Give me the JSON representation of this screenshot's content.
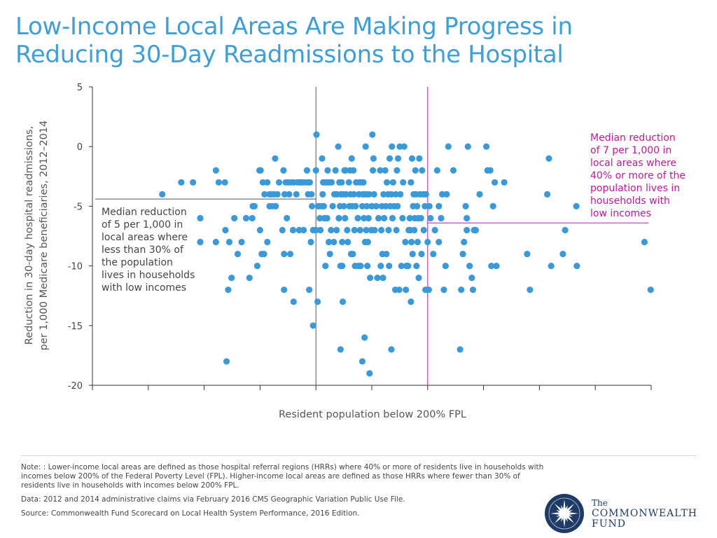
{
  "header": {
    "title_line1": "Low-Income Local Areas Are Making Progress in",
    "title_line2": "Reducing 30-Day Readmissions to the Hospital"
  },
  "footer": {
    "note": "Note: : Lower-income local areas are defined as those hospital referral regions (HRRs) where 40% or more of residents live in households with incomes below 200% of the Federal Poverty Level (FPL). Higher-income local areas are defined as those HRRs where fewer than 30% of residents live in households with incomes below 200% FPL.",
    "data_source": "Data: 2012 and 2014 administrative claims via February 2016 CMS Geographic Variation Public Use File.",
    "source": "Source: Commonwealth Fund Scorecard on Local Health System Performance, 2016 Edition.",
    "logo_the": "The",
    "logo_line1": "COMMONWEALTH",
    "logo_line2": "FUND"
  },
  "colors": {
    "title": "#3d9fd6",
    "points": "#3a9ad9",
    "low_income_line": "#c2169b",
    "high_income_line": "#555555",
    "logo": "#1e3a66"
  },
  "chart_data": {
    "type": "scatter",
    "xlabel": "Resident population below 200% FPL",
    "ylabel_line1": "Reduction in 30-day hospital readmissions,",
    "ylabel_line2": "per 1,000 Medicare beneficiaries, 2012–2014",
    "xlim": [
      0,
      1
    ],
    "ylim": [
      -20,
      5
    ],
    "yticks": [
      5,
      0,
      -5,
      -10,
      -15,
      -20
    ],
    "xticks": [
      0,
      0.1,
      0.2,
      0.3,
      0.4,
      0.5,
      0.6,
      0.7,
      0.8,
      0.9,
      1.0
    ],
    "xtick_labels_shown": false,
    "reference_lines": [
      {
        "name": "high-income-threshold",
        "x": 0.4,
        "median_y": -4.4,
        "median_x_range": [
          0.005,
          0.4
        ],
        "color": "#555555"
      },
      {
        "name": "low-income-threshold",
        "x": 0.6,
        "median_y": -6.4,
        "median_x_range": [
          0.6,
          0.995
        ],
        "color": "#c2169b"
      }
    ],
    "annotations": [
      {
        "name": "high-income-annotation",
        "color": "#444444",
        "lines": [
          "Median reduction",
          "of 5 per 1,000 in",
          "local areas where",
          "less than 30% of",
          "the population",
          "lives in households",
          "with low incomes"
        ]
      },
      {
        "name": "low-income-annotation",
        "color": "#c2169b",
        "lines": [
          "Median reduction",
          "of 7 per 1,000 in",
          "local areas where",
          "40% or more of the",
          "population lives in",
          "households with",
          "low incomes"
        ]
      }
    ],
    "series": [
      {
        "name": "Hospital referral regions",
        "points": [
          [
            0.125,
            -4
          ],
          [
            0.159,
            -3
          ],
          [
            0.18,
            -3
          ],
          [
            0.193,
            -6
          ],
          [
            0.193,
            -8
          ],
          [
            0.221,
            -2
          ],
          [
            0.221,
            -8
          ],
          [
            0.226,
            -3
          ],
          [
            0.237,
            -3
          ],
          [
            0.238,
            -7
          ],
          [
            0.24,
            -18
          ],
          [
            0.243,
            -12
          ],
          [
            0.245,
            -8
          ],
          [
            0.249,
            -11
          ],
          [
            0.254,
            -6
          ],
          [
            0.26,
            -9
          ],
          [
            0.267,
            -8
          ],
          [
            0.275,
            -6
          ],
          [
            0.281,
            -11
          ],
          [
            0.286,
            -6
          ],
          [
            0.287,
            -5
          ],
          [
            0.29,
            -5
          ],
          [
            0.295,
            -10
          ],
          [
            0.3,
            -7
          ],
          [
            0.299,
            -2
          ],
          [
            0.301,
            -2
          ],
          [
            0.305,
            -3
          ],
          [
            0.303,
            -9
          ],
          [
            0.307,
            -9
          ],
          [
            0.308,
            -4
          ],
          [
            0.313,
            -3
          ],
          [
            0.313,
            -8
          ],
          [
            0.317,
            -4
          ],
          [
            0.317,
            -5
          ],
          [
            0.32,
            -4
          ],
          [
            0.322,
            -5
          ],
          [
            0.325,
            -4
          ],
          [
            0.327,
            -1
          ],
          [
            0.328,
            -5
          ],
          [
            0.331,
            -4
          ],
          [
            0.334,
            -3
          ],
          [
            0.34,
            -7
          ],
          [
            0.343,
            -9
          ],
          [
            0.343,
            -12
          ],
          [
            0.342,
            -2
          ],
          [
            0.344,
            -4
          ],
          [
            0.346,
            -3
          ],
          [
            0.35,
            -3
          ],
          [
            0.348,
            -6
          ],
          [
            0.352,
            -4
          ],
          [
            0.354,
            -9
          ],
          [
            0.355,
            -3
          ],
          [
            0.36,
            -13
          ],
          [
            0.359,
            -7
          ],
          [
            0.36,
            -3
          ],
          [
            0.365,
            -4
          ],
          [
            0.367,
            -3
          ],
          [
            0.37,
            -7
          ],
          [
            0.37,
            -3
          ],
          [
            0.373,
            -3
          ],
          [
            0.376,
            -3
          ],
          [
            0.379,
            -3
          ],
          [
            0.378,
            -7
          ],
          [
            0.384,
            -2
          ],
          [
            0.385,
            -3
          ],
          [
            0.386,
            -4
          ],
          [
            0.388,
            -12
          ],
          [
            0.389,
            -3
          ],
          [
            0.391,
            -8
          ],
          [
            0.392,
            -4
          ],
          [
            0.393,
            -5
          ],
          [
            0.395,
            -15
          ],
          [
            0.395,
            -7
          ],
          [
            0.4,
            -2
          ],
          [
            0.4,
            -7
          ],
          [
            0.401,
            1
          ],
          [
            0.403,
            -13
          ],
          [
            0.404,
            -5
          ],
          [
            0.405,
            -5
          ],
          [
            0.407,
            -6
          ],
          [
            0.408,
            -7
          ],
          [
            0.411,
            -1
          ],
          [
            0.41,
            -5
          ],
          [
            0.412,
            -4
          ],
          [
            0.413,
            -3
          ],
          [
            0.414,
            -5
          ],
          [
            0.415,
            -6
          ],
          [
            0.416,
            -3
          ],
          [
            0.417,
            -10
          ],
          [
            0.419,
            -3
          ],
          [
            0.42,
            -6
          ],
          [
            0.421,
            -2
          ],
          [
            0.423,
            -8
          ],
          [
            0.424,
            -3
          ],
          [
            0.425,
            -9
          ],
          [
            0.427,
            -7
          ],
          [
            0.428,
            -3
          ],
          [
            0.43,
            -5
          ],
          [
            0.432,
            -8
          ],
          [
            0.433,
            -4
          ],
          [
            0.435,
            -2
          ],
          [
            0.437,
            -7
          ],
          [
            0.438,
            -4
          ],
          [
            0.44,
            0
          ],
          [
            0.441,
            -6
          ],
          [
            0.442,
            -3
          ],
          [
            0.443,
            -5
          ],
          [
            0.444,
            -10
          ],
          [
            0.444,
            -17
          ],
          [
            0.445,
            -4
          ],
          [
            0.446,
            -3
          ],
          [
            0.447,
            -10
          ],
          [
            0.447,
            -8
          ],
          [
            0.448,
            -13
          ],
          [
            0.449,
            -4
          ],
          [
            0.45,
            -5
          ],
          [
            0.451,
            -2
          ],
          [
            0.452,
            -6
          ],
          [
            0.453,
            -2
          ],
          [
            0.454,
            -4
          ],
          [
            0.456,
            -7
          ],
          [
            0.457,
            -8
          ],
          [
            0.459,
            -3
          ],
          [
            0.46,
            -5
          ],
          [
            0.461,
            -2
          ],
          [
            0.462,
            -4
          ],
          [
            0.463,
            -9
          ],
          [
            0.464,
            -1
          ],
          [
            0.465,
            -5
          ],
          [
            0.466,
            -9
          ],
          [
            0.467,
            -2
          ],
          [
            0.468,
            -4
          ],
          [
            0.469,
            -7
          ],
          [
            0.47,
            -10
          ],
          [
            0.471,
            -5
          ],
          [
            0.472,
            -3
          ],
          [
            0.475,
            -6
          ],
          [
            0.476,
            -10
          ],
          [
            0.477,
            -4
          ],
          [
            0.478,
            -3
          ],
          [
            0.479,
            -7
          ],
          [
            0.48,
            -10
          ],
          [
            0.481,
            -3
          ],
          [
            0.483,
            -18
          ],
          [
            0.483,
            -5
          ],
          [
            0.484,
            -4
          ],
          [
            0.485,
            -3
          ],
          [
            0.486,
            -6
          ],
          [
            0.487,
            -16
          ],
          [
            0.486,
            -4
          ],
          [
            0.488,
            -8
          ],
          [
            0.489,
            0
          ],
          [
            0.49,
            -4
          ],
          [
            0.49,
            -7
          ],
          [
            0.491,
            -5
          ],
          [
            0.492,
            -10
          ],
          [
            0.493,
            -8
          ],
          [
            0.494,
            -6
          ],
          [
            0.495,
            -4
          ],
          [
            0.496,
            -19
          ],
          [
            0.497,
            -11
          ],
          [
            0.499,
            -7
          ],
          [
            0.5,
            -5
          ],
          [
            0.501,
            1
          ],
          [
            0.502,
            -2
          ],
          [
            0.503,
            -1
          ],
          [
            0.504,
            -4
          ],
          [
            0.505,
            -7
          ],
          [
            0.508,
            -5
          ],
          [
            0.51,
            -11
          ],
          [
            0.512,
            -6
          ],
          [
            0.515,
            -2
          ],
          [
            0.516,
            -10
          ],
          [
            0.517,
            -7
          ],
          [
            0.518,
            -5
          ],
          [
            0.519,
            -9
          ],
          [
            0.52,
            -11
          ],
          [
            0.521,
            -4
          ],
          [
            0.522,
            -6
          ],
          [
            0.524,
            -2
          ],
          [
            0.525,
            -5
          ],
          [
            0.526,
            -9
          ],
          [
            0.527,
            -3
          ],
          [
            0.529,
            -4
          ],
          [
            0.53,
            -7
          ],
          [
            0.531,
            -10
          ],
          [
            0.532,
            -1
          ],
          [
            0.533,
            -5
          ],
          [
            0.535,
            -17
          ],
          [
            0.535,
            -4
          ],
          [
            0.536,
            0
          ],
          [
            0.537,
            -6
          ],
          [
            0.538,
            -3
          ],
          [
            0.54,
            -5
          ],
          [
            0.542,
            -12
          ],
          [
            0.543,
            -4
          ],
          [
            0.544,
            -7
          ],
          [
            0.545,
            -2
          ],
          [
            0.546,
            -5
          ],
          [
            0.547,
            -1
          ],
          [
            0.549,
            -12
          ],
          [
            0.55,
            0
          ],
          [
            0.551,
            -4
          ],
          [
            0.553,
            -10
          ],
          [
            0.555,
            -6
          ],
          [
            0.556,
            -3
          ],
          [
            0.558,
            0
          ],
          [
            0.56,
            -8
          ],
          [
            0.561,
            -12
          ],
          [
            0.562,
            -10
          ],
          [
            0.563,
            -10
          ],
          [
            0.565,
            -10
          ],
          [
            0.566,
            -7
          ],
          [
            0.567,
            -7
          ],
          [
            0.568,
            -6
          ],
          [
            0.569,
            -7
          ],
          [
            0.57,
            -13
          ],
          [
            0.57,
            -3
          ],
          [
            0.571,
            -8
          ],
          [
            0.572,
            -1
          ],
          [
            0.573,
            -9
          ],
          [
            0.574,
            -5
          ],
          [
            0.575,
            -4
          ],
          [
            0.576,
            -7
          ],
          [
            0.577,
            -6
          ],
          [
            0.578,
            -2
          ],
          [
            0.579,
            -4
          ],
          [
            0.58,
            -10
          ],
          [
            0.581,
            -5
          ],
          [
            0.582,
            -8
          ],
          [
            0.583,
            -6
          ],
          [
            0.584,
            -11
          ],
          [
            0.585,
            -1
          ],
          [
            0.586,
            -4
          ],
          [
            0.588,
            -6
          ],
          [
            0.589,
            -9
          ],
          [
            0.59,
            -2
          ],
          [
            0.592,
            -4
          ],
          [
            0.593,
            -7
          ],
          [
            0.595,
            -5
          ],
          [
            0.596,
            -12
          ],
          [
            0.597,
            -4
          ],
          [
            0.598,
            -12
          ],
          [
            0.6,
            -8
          ],
          [
            0.602,
            -12
          ],
          [
            0.603,
            -5
          ],
          [
            0.605,
            -6
          ],
          [
            0.61,
            -9
          ],
          [
            0.613,
            -7
          ],
          [
            0.617,
            -2
          ],
          [
            0.62,
            -8
          ],
          [
            0.62,
            -5
          ],
          [
            0.624,
            -6
          ],
          [
            0.626,
            -4
          ],
          [
            0.629,
            -12
          ],
          [
            0.632,
            -10
          ],
          [
            0.634,
            -4
          ],
          [
            0.637,
            0
          ],
          [
            0.646,
            -2
          ],
          [
            0.658,
            -17
          ],
          [
            0.66,
            -12
          ],
          [
            0.663,
            -9
          ],
          [
            0.665,
            -8
          ],
          [
            0.668,
            -5
          ],
          [
            0.67,
            -6
          ],
          [
            0.67,
            -7
          ],
          [
            0.672,
            0
          ],
          [
            0.675,
            -10
          ],
          [
            0.679,
            -11
          ],
          [
            0.681,
            -12
          ],
          [
            0.683,
            -7
          ],
          [
            0.686,
            -7
          ],
          [
            0.693,
            -4
          ],
          [
            0.705,
            0
          ],
          [
            0.707,
            -2
          ],
          [
            0.712,
            -2
          ],
          [
            0.714,
            -10
          ],
          [
            0.717,
            -5
          ],
          [
            0.72,
            -3
          ],
          [
            0.723,
            -10
          ],
          [
            0.737,
            -3
          ],
          [
            0.778,
            -9
          ],
          [
            0.783,
            -12
          ],
          [
            0.814,
            -4
          ],
          [
            0.817,
            -1
          ],
          [
            0.821,
            -10
          ],
          [
            0.842,
            -9
          ],
          [
            0.846,
            -7
          ],
          [
            0.866,
            -5
          ],
          [
            0.867,
            -10
          ],
          [
            0.988,
            -8
          ],
          [
            0.999,
            -12
          ]
        ]
      }
    ]
  }
}
